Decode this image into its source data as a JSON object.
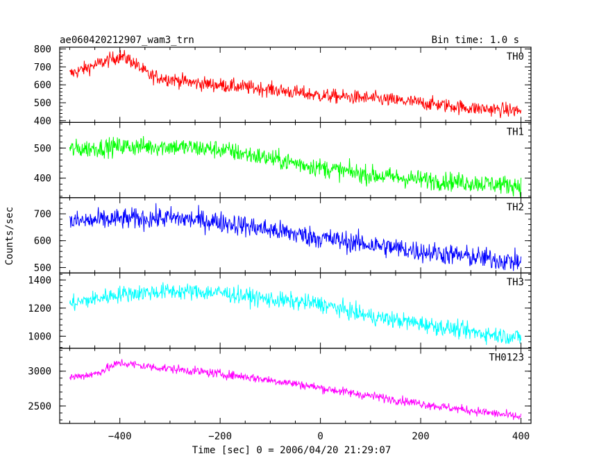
{
  "chart_data": {
    "type": "line",
    "title": "ae060420212907_wam3_trn",
    "bin_time": "Bin time: 1.0 s",
    "xlabel": "Time [sec] 0 = 2006/04/20 21:29:07",
    "ylabel": "Counts/sec",
    "xlim": [
      -520,
      420
    ],
    "xticks": [
      -400,
      -200,
      0,
      200,
      400
    ],
    "xtick_labels": [
      "−400",
      "−200",
      "0",
      "200",
      "400"
    ],
    "grid": false,
    "panels": [
      {
        "name": "TH0",
        "color": "#ff0000",
        "ylim": [
          390,
          810
        ],
        "yticks": [
          400,
          500,
          600,
          700,
          800
        ],
        "ytick_labels": [
          "400",
          "500",
          "600",
          "700",
          "800"
        ],
        "trend": [
          [
            -500,
            660
          ],
          [
            -450,
            710
          ],
          [
            -400,
            760
          ],
          [
            -380,
            740
          ],
          [
            -340,
            650
          ],
          [
            -250,
            610
          ],
          [
            -100,
            575
          ],
          [
            0,
            540
          ],
          [
            100,
            525
          ],
          [
            200,
            500
          ],
          [
            300,
            470
          ],
          [
            400,
            455
          ]
        ],
        "noise": 28
      },
      {
        "name": "TH1",
        "color": "#00ff00",
        "ylim": [
          335,
          585
        ],
        "yticks": [
          400,
          500
        ],
        "ytick_labels": [
          "400",
          "500"
        ],
        "trend": [
          [
            -500,
            495
          ],
          [
            -400,
            505
          ],
          [
            -300,
            505
          ],
          [
            -200,
            495
          ],
          [
            -100,
            465
          ],
          [
            0,
            435
          ],
          [
            100,
            410
          ],
          [
            200,
            395
          ],
          [
            300,
            385
          ],
          [
            400,
            375
          ]
        ],
        "noise": 22
      },
      {
        "name": "TH2",
        "color": "#0000ff",
        "ylim": [
          480,
          760
        ],
        "yticks": [
          500,
          600,
          700
        ],
        "ytick_labels": [
          "500",
          "600",
          "700"
        ],
        "trend": [
          [
            -500,
            670
          ],
          [
            -400,
            680
          ],
          [
            -300,
            685
          ],
          [
            -200,
            670
          ],
          [
            -100,
            640
          ],
          [
            0,
            610
          ],
          [
            100,
            585
          ],
          [
            200,
            560
          ],
          [
            300,
            540
          ],
          [
            400,
            520
          ]
        ],
        "noise": 28
      },
      {
        "name": "TH3",
        "color": "#00ffff",
        "ylim": [
          915,
          1450
        ],
        "yticks": [
          1000,
          1200,
          1400
        ],
        "ytick_labels": [
          "1000",
          "1200",
          "1400"
        ],
        "trend": [
          [
            -500,
            1230
          ],
          [
            -400,
            1300
          ],
          [
            -300,
            1320
          ],
          [
            -200,
            1310
          ],
          [
            -100,
            1260
          ],
          [
            0,
            1230
          ],
          [
            100,
            1140
          ],
          [
            200,
            1090
          ],
          [
            300,
            1030
          ],
          [
            400,
            990
          ]
        ],
        "noise": 42
      },
      {
        "name": "TH0123",
        "color": "#ff00ff",
        "ylim": [
          2250,
          3330
        ],
        "yticks": [
          2500,
          3000
        ],
        "ytick_labels": [
          "2500",
          "3000"
        ],
        "trend": [
          [
            -500,
            2910
          ],
          [
            -450,
            2960
          ],
          [
            -400,
            3120
          ],
          [
            -350,
            3070
          ],
          [
            -250,
            3000
          ],
          [
            -150,
            2920
          ],
          [
            -50,
            2820
          ],
          [
            50,
            2700
          ],
          [
            150,
            2590
          ],
          [
            250,
            2480
          ],
          [
            350,
            2390
          ],
          [
            400,
            2340
          ]
        ],
        "noise": 45
      }
    ]
  }
}
